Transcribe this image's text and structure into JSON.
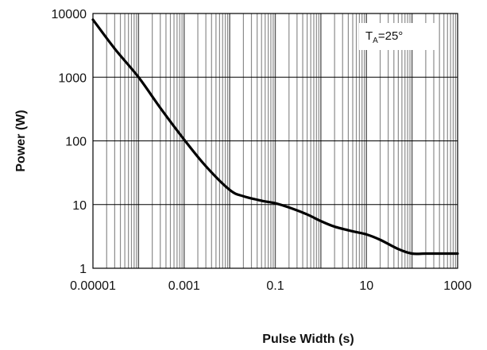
{
  "chart_data": {
    "type": "line",
    "title": "",
    "xlabel": "Pulse Width (s)",
    "ylabel": "Power (W)",
    "x_scale": "log",
    "y_scale": "log",
    "xlim": [
      1e-05,
      1000
    ],
    "ylim": [
      1,
      10000
    ],
    "grid": "vertical",
    "x_ticks": [
      "0.00001",
      "0.001",
      "0.1",
      "10",
      "1000"
    ],
    "x_tick_values": [
      1e-05,
      0.001,
      0.1,
      10,
      1000
    ],
    "y_ticks": [
      "1",
      "10",
      "100",
      "1000",
      "10000"
    ],
    "y_tick_values": [
      1,
      10,
      100,
      1000,
      10000
    ],
    "annotation": {
      "main": "T",
      "sub": "A",
      "rest": "=25°"
    },
    "series": [
      {
        "color": "#000000",
        "x": [
          1e-05,
          3e-05,
          0.0001,
          0.0003,
          0.001,
          0.003,
          0.01,
          0.02,
          0.05,
          0.1,
          0.2,
          0.5,
          1,
          2,
          5,
          10,
          20,
          50,
          100,
          200,
          500,
          1000
        ],
        "y": [
          8000,
          2800,
          1000,
          330,
          105,
          40,
          17,
          13.5,
          11.5,
          10.5,
          9,
          7,
          5.5,
          4.5,
          3.8,
          3.4,
          2.8,
          2,
          1.7,
          1.7,
          1.7,
          1.7
        ]
      }
    ]
  }
}
